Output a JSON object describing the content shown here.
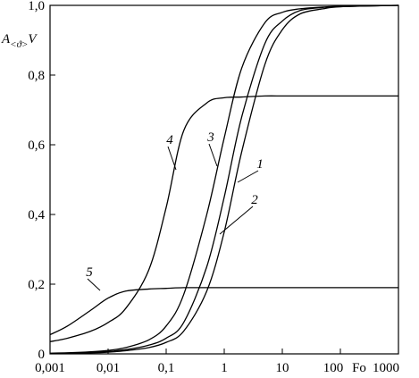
{
  "chart_data": {
    "type": "line",
    "y_label": {
      "main": "A",
      "sub": "<ϑ>",
      "tail": "V"
    },
    "x_label": "Fo",
    "x": [
      0.001,
      0.002,
      0.005,
      0.01,
      0.02,
      0.05,
      0.1,
      0.2,
      0.5,
      1,
      2,
      5,
      10,
      20,
      50,
      100,
      1000
    ],
    "series": [
      {
        "name": "1",
        "color": "#000000",
        "values": [
          0.001,
          0.002,
          0.004,
          0.007,
          0.012,
          0.025,
          0.045,
          0.09,
          0.25,
          0.45,
          0.68,
          0.89,
          0.955,
          0.985,
          0.994,
          0.997,
          1.0
        ]
      },
      {
        "name": "2",
        "color": "#000000",
        "values": [
          0.001,
          0.002,
          0.003,
          0.005,
          0.009,
          0.018,
          0.033,
          0.065,
          0.18,
          0.35,
          0.58,
          0.83,
          0.93,
          0.975,
          0.99,
          0.996,
          1.0
        ]
      },
      {
        "name": "3",
        "color": "#000000",
        "values": [
          0.002,
          0.003,
          0.006,
          0.01,
          0.018,
          0.04,
          0.08,
          0.17,
          0.4,
          0.62,
          0.82,
          0.95,
          0.98,
          0.99,
          0.995,
          0.997,
          1.0
        ]
      },
      {
        "name": "4",
        "color": "#000000",
        "values": [
          0.035,
          0.045,
          0.065,
          0.09,
          0.13,
          0.24,
          0.42,
          0.64,
          0.72,
          0.735,
          0.737,
          0.74,
          0.74,
          0.74,
          0.74,
          0.74,
          0.74
        ]
      },
      {
        "name": "5",
        "color": "#000000",
        "values": [
          0.055,
          0.08,
          0.125,
          0.16,
          0.18,
          0.186,
          0.188,
          0.19,
          0.19,
          0.19,
          0.19,
          0.19,
          0.19,
          0.19,
          0.19,
          0.19,
          0.19
        ]
      }
    ],
    "log_x": true,
    "xlim": [
      0.001,
      1000
    ],
    "xticks": [
      {
        "value": 0.001,
        "label": "0,001"
      },
      {
        "value": 0.01,
        "label": "0,01"
      },
      {
        "value": 0.1,
        "label": "0,1"
      },
      1,
      10,
      100,
      1000
    ],
    "ylim": [
      0,
      1
    ],
    "yticks": [
      0,
      {
        "value": 0.2,
        "label": "0,2"
      },
      {
        "value": 0.4,
        "label": "0,4"
      },
      {
        "value": 0.6,
        "label": "0,6"
      },
      {
        "value": 0.8,
        "label": "0,8"
      },
      {
        "value": 1,
        "label": "1,0"
      }
    ]
  }
}
